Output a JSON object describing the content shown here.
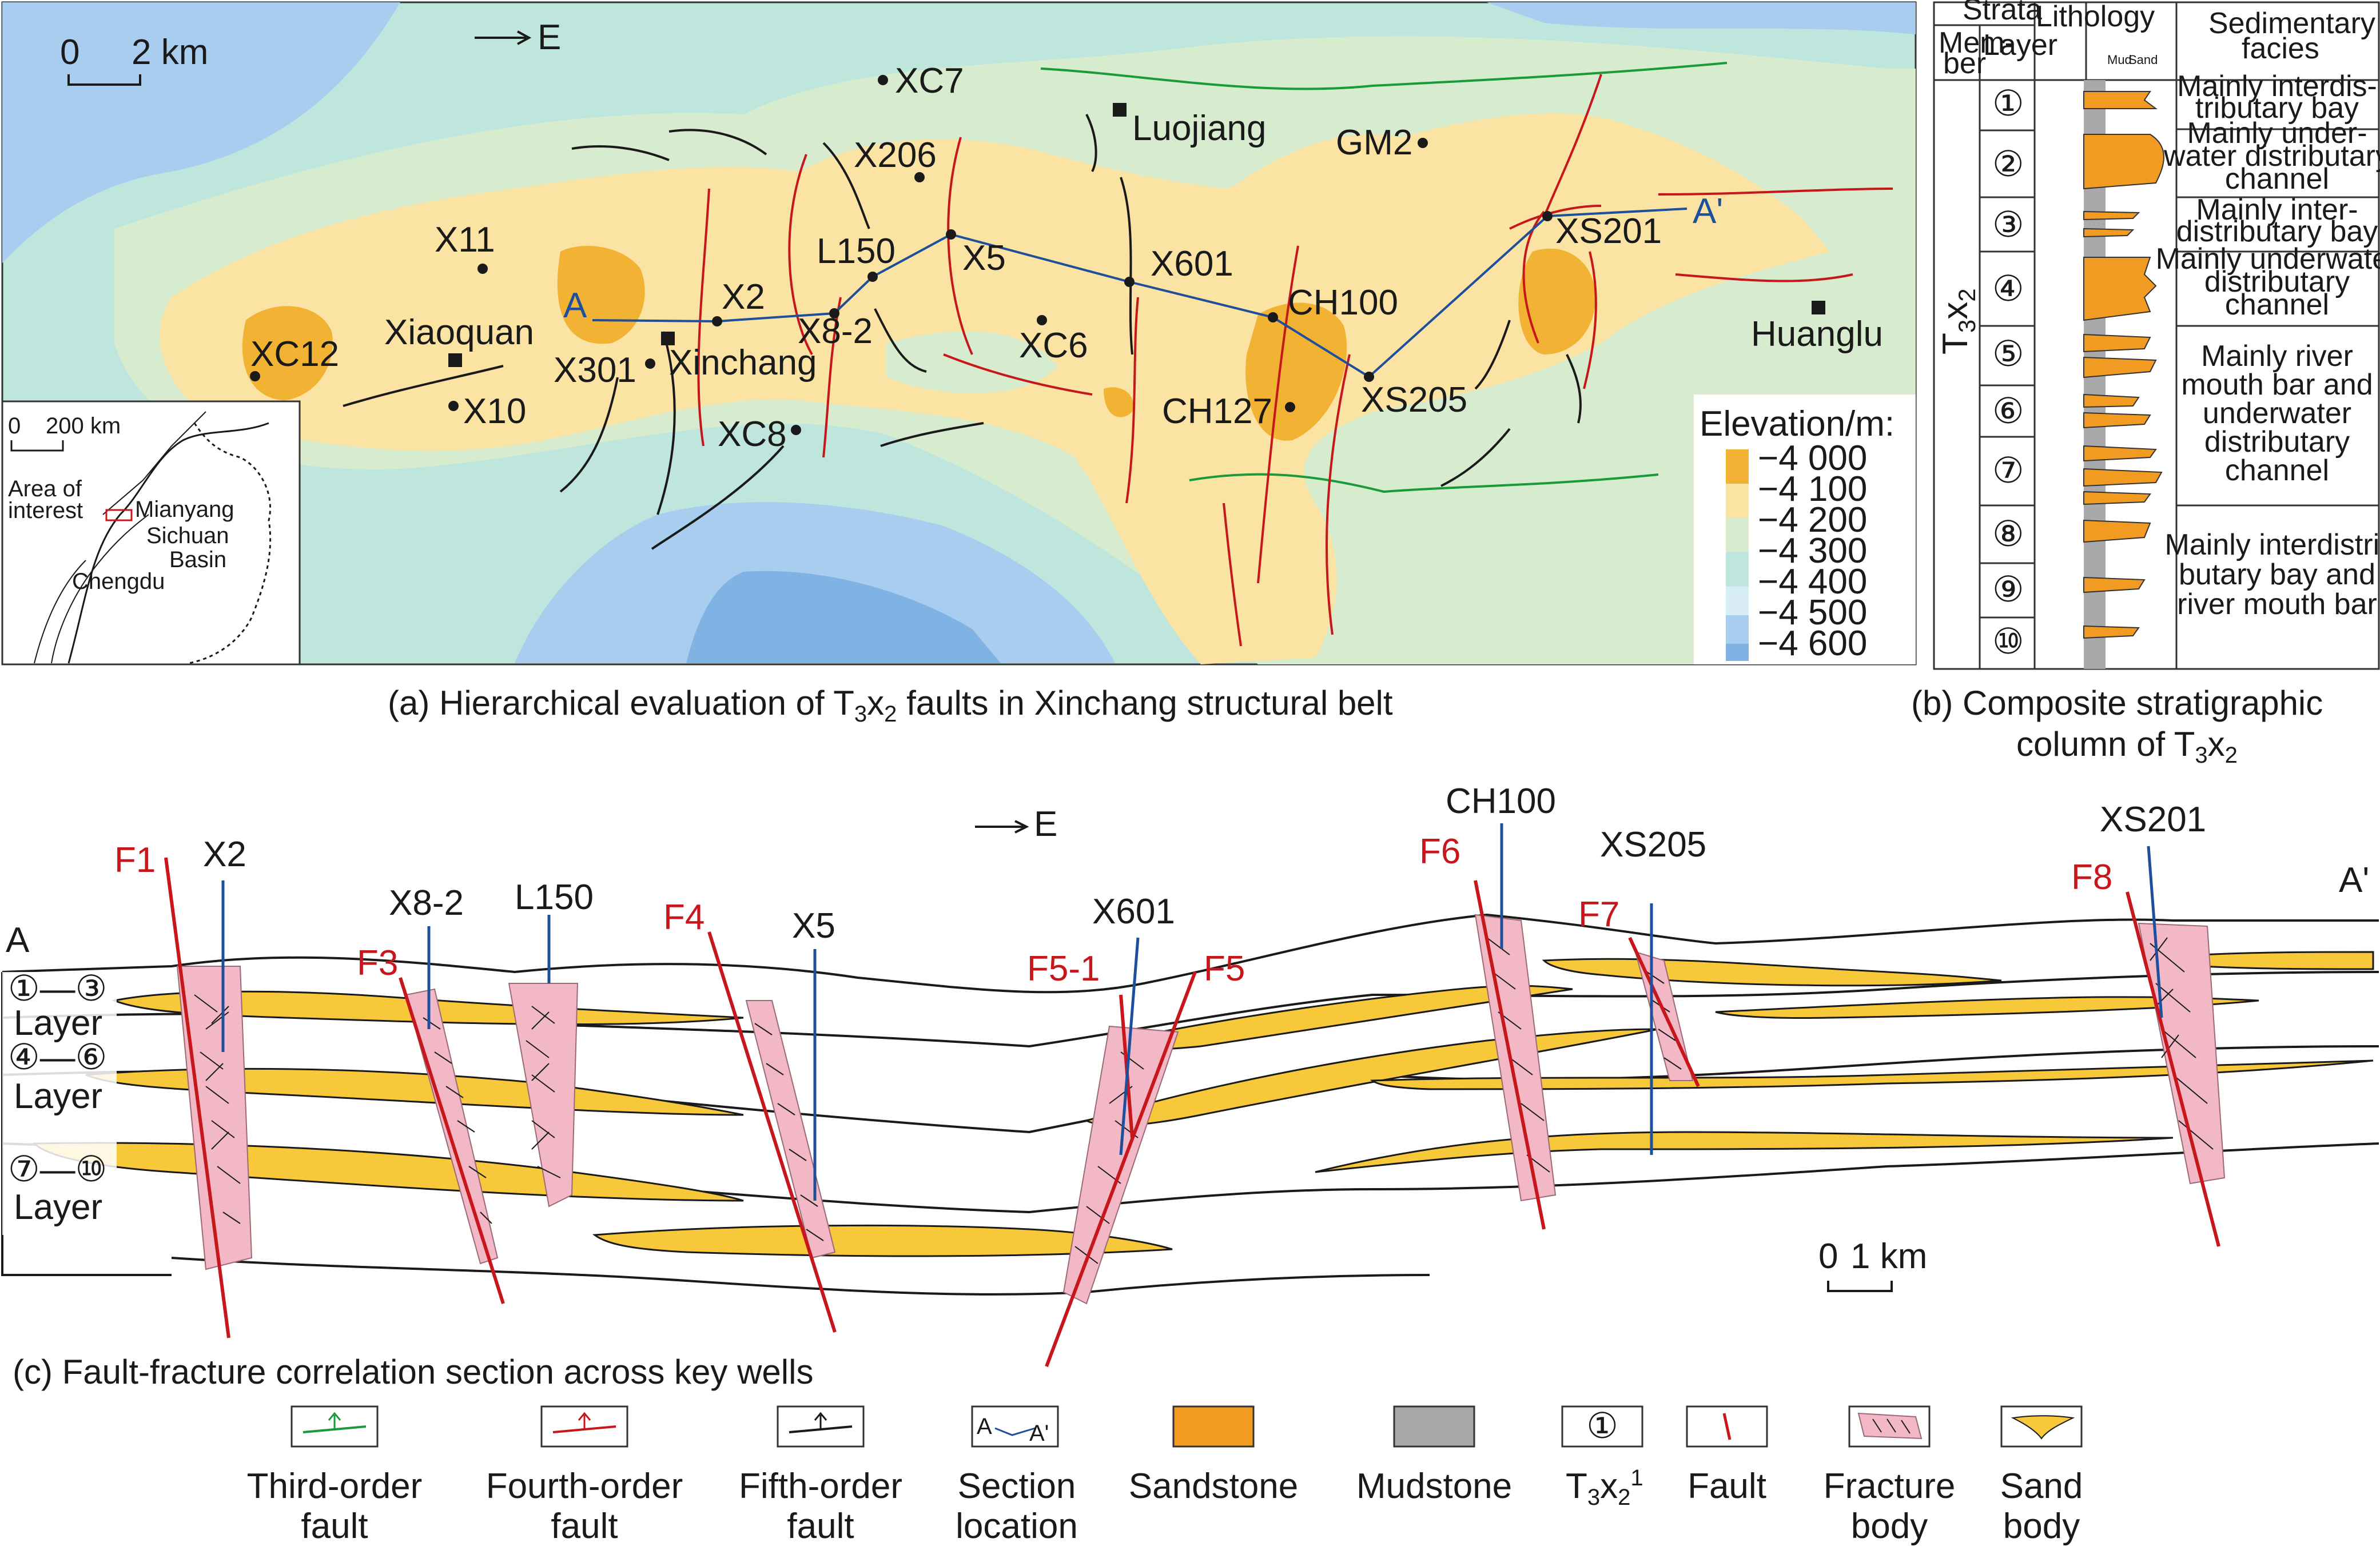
{
  "map": {
    "direction": "E",
    "scalebar": {
      "start": "0",
      "end": "2 km"
    },
    "wells": [
      {
        "id": "XC7",
        "label": "XC7"
      },
      {
        "id": "X206",
        "label": "X206"
      },
      {
        "id": "X11",
        "label": "X11"
      },
      {
        "id": "L150",
        "label": "L150"
      },
      {
        "id": "X5",
        "label": "X5"
      },
      {
        "id": "X601",
        "label": "X601"
      },
      {
        "id": "GM2",
        "label": "GM2"
      },
      {
        "id": "XS201",
        "label": "XS201"
      },
      {
        "id": "X2",
        "label": "X2"
      },
      {
        "id": "X8-2",
        "label": "X8-2"
      },
      {
        "id": "XC6",
        "label": "XC6"
      },
      {
        "id": "CH100",
        "label": "CH100"
      },
      {
        "id": "XC12",
        "label": "XC12"
      },
      {
        "id": "X301",
        "label": "X301"
      },
      {
        "id": "X10",
        "label": "X10"
      },
      {
        "id": "XC8",
        "label": "XC8"
      },
      {
        "id": "CH127",
        "label": "CH127"
      },
      {
        "id": "XS205",
        "label": "XS205"
      }
    ],
    "towns": [
      "Luojiang",
      "Xiaoquan",
      "Xinchang",
      "Huanglu"
    ],
    "section_ends": {
      "start": "A",
      "end": "A'"
    },
    "legend": {
      "title": "Elevation/m:",
      "levels": [
        {
          "label": "−4 000",
          "color": "#f2b233"
        },
        {
          "label": "−4 100",
          "color": "#fbe3a4"
        },
        {
          "label": "−4 200",
          "color": "#d7ebcf"
        },
        {
          "label": "−4 300",
          "color": "#bfe6dc"
        },
        {
          "label": "−4 400",
          "color": "#d8ecf7"
        },
        {
          "label": "−4 500",
          "color": "#a8cdee"
        },
        {
          "label": "−4 600",
          "color": "#7fb3e4"
        }
      ]
    },
    "inset": {
      "scale_start": "0",
      "scale_end": "200 km",
      "area_line1": "Area of",
      "area_line2": "interest",
      "city1": "Mianyang",
      "basin_line1": "Sichuan",
      "basin_line2": "Basin",
      "city2": "Chengdu"
    },
    "caption_pre": "(a) Hierarchical evaluation of T",
    "caption_sub1": "3",
    "caption_mid": "x",
    "caption_sub2": "2",
    "caption_post": " faults in Xinchang structural belt"
  },
  "column": {
    "header_strata": "Strata",
    "header_member_1": "Mem-",
    "header_member_2": "ber",
    "header_layer": "Layer",
    "header_lithology": "Lithology",
    "header_mud": "Mud",
    "header_sand": "Sand",
    "header_facies_1": "Sedimentary",
    "header_facies_2": "facies",
    "member_label": "T",
    "member_sub1": "3",
    "member_x": "x",
    "member_sub2": "2",
    "layers": [
      "①",
      "②",
      "③",
      "④",
      "⑤",
      "⑥",
      "⑦",
      "⑧",
      "⑨",
      "⑩"
    ],
    "facies": [
      {
        "lines": [
          "Mainly interdis-",
          "tributary bay"
        ]
      },
      {
        "lines": [
          "Mainly under-",
          "water distributary",
          "channel"
        ]
      },
      {
        "lines": [
          "Mainly inter-",
          "distributary bay"
        ]
      },
      {
        "lines": [
          "Mainly underwater",
          "distributary",
          "channel"
        ]
      },
      {
        "lines": [
          "Mainly river",
          "mouth bar and",
          "underwater",
          "distributary",
          "channel"
        ]
      },
      {
        "lines": [
          "Mainly interdistri-",
          "butary bay and",
          "river mouth bar"
        ]
      }
    ],
    "caption_line1": "(b) Composite stratigraphic",
    "caption_line2_pre": "column of T",
    "caption_line2_sub1": "3",
    "caption_line2_x": "x",
    "caption_line2_sub2": "2"
  },
  "section": {
    "direction": "E",
    "start": "A",
    "end": "A'",
    "layer_groups": [
      {
        "range": "①—③",
        "word": "Layer"
      },
      {
        "range": "④—⑥",
        "word": "Layer"
      },
      {
        "range": "⑦—⑩",
        "word": "Layer"
      }
    ],
    "wells": [
      "X2",
      "X8-2",
      "L150",
      "X5",
      "X601",
      "CH100",
      "XS205",
      "XS201"
    ],
    "faults": [
      "F1",
      "F3",
      "F4",
      "F5-1",
      "F5",
      "F6",
      "F7",
      "F8"
    ],
    "scalebar": {
      "start": "0",
      "end": "1 km"
    },
    "caption": "(c) Fault-fracture correlation section across key wells"
  },
  "legend_bottom": [
    {
      "line1": "Third-order",
      "line2": "fault"
    },
    {
      "line1": "Fourth-order",
      "line2": "fault"
    },
    {
      "line1": "Fifth-order",
      "line2": "fault"
    },
    {
      "line1": "Section",
      "line2": "location",
      "a": "A",
      "a2": "A'"
    },
    {
      "line1": "Sandstone",
      "line2": ""
    },
    {
      "line1": "Mudstone",
      "line2": ""
    },
    {
      "line1": "T",
      "sub": "3",
      "x": "x",
      "sub2": "2",
      "sup": "1",
      "symbol": "①"
    },
    {
      "line1": "Fault",
      "line2": ""
    },
    {
      "line1": "Fracture",
      "line2": "body"
    },
    {
      "line1": "Sand",
      "line2": "body"
    }
  ],
  "colors": {
    "fault_third": "#1a9a3a",
    "fault_fourth": "#c8161d",
    "fault_fifth": "#1a1a1a",
    "section_line": "#1d4f9c",
    "sandstone": "#f29b22",
    "mudstone": "#a9a9ab",
    "sand_body": "#f7c83a",
    "fracture": "#f2b8c6"
  }
}
